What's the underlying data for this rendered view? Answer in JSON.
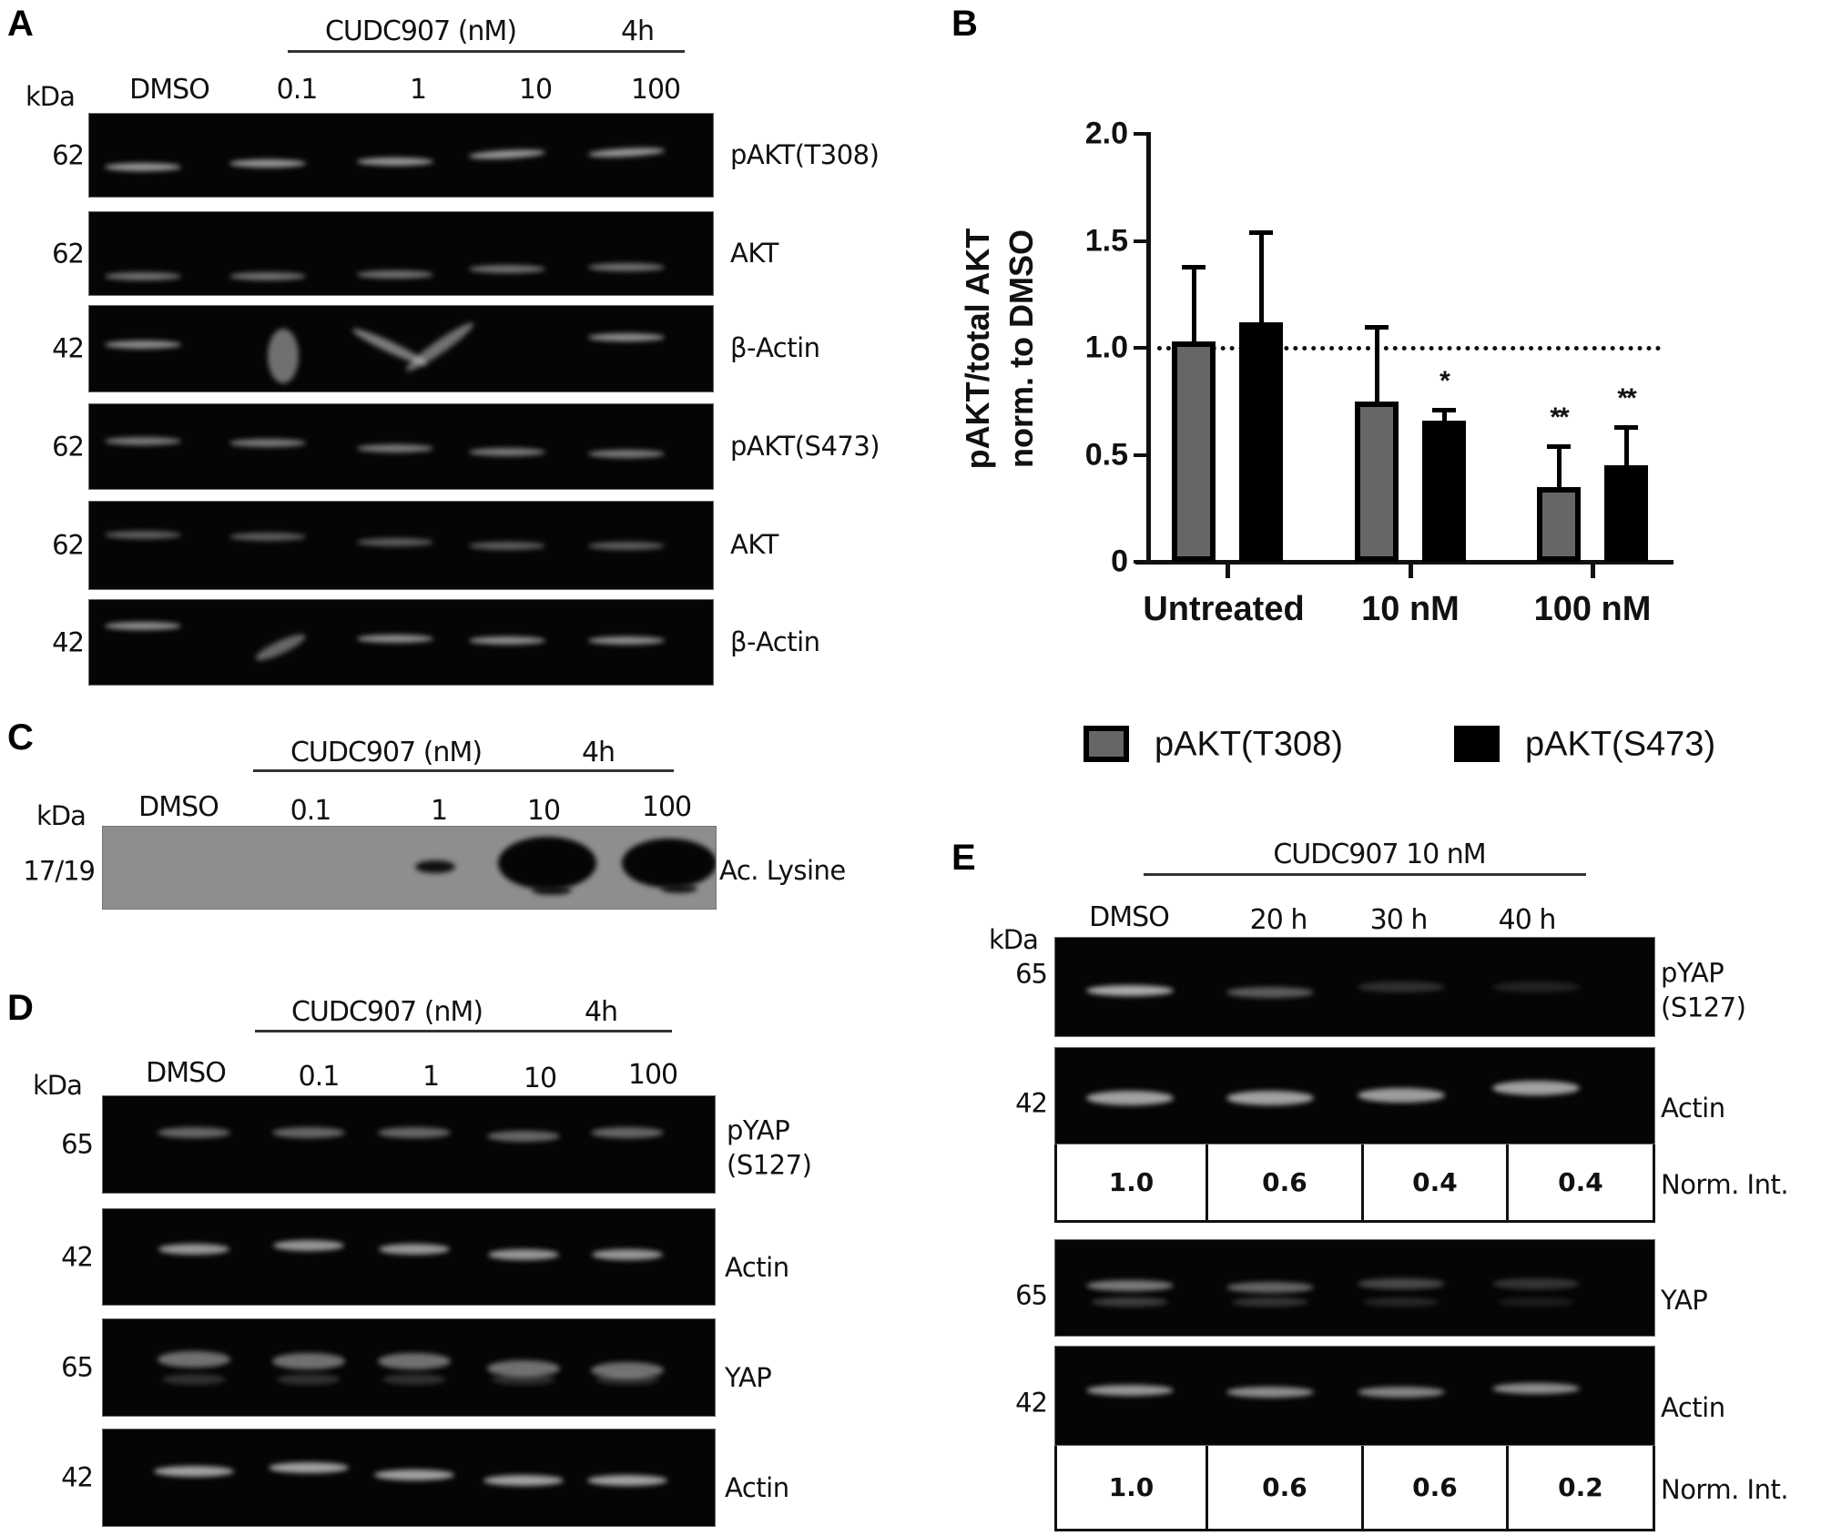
{
  "panels": {
    "A": {
      "letter": "A",
      "treatment_header": "CUDC907 (nM)",
      "time_header": "4h",
      "kda_label": "kDa",
      "lanes": [
        "DMSO",
        "0.1",
        "1",
        "10",
        "100"
      ],
      "blots": [
        {
          "mw": "62",
          "label": "pAKT(T308)"
        },
        {
          "mw": "62",
          "label": "AKT"
        },
        {
          "mw": "42",
          "label": "β-Actin"
        },
        {
          "mw": "62",
          "label": "pAKT(S473)"
        },
        {
          "mw": "62",
          "label": "AKT"
        },
        {
          "mw": "42",
          "label": "β-Actin"
        }
      ]
    },
    "B": {
      "letter": "B"
    },
    "C": {
      "letter": "C",
      "treatment_header": "CUDC907 (nM)",
      "time_header": "4h",
      "kda_label": "kDa",
      "lanes": [
        "DMSO",
        "0.1",
        "1",
        "10",
        "100"
      ],
      "blots": [
        {
          "mw": "17/19",
          "label": "Ac. Lysine"
        }
      ]
    },
    "D": {
      "letter": "D",
      "treatment_header": "CUDC907 (nM)",
      "time_header": "4h",
      "kda_label": "kDa",
      "lanes": [
        "DMSO",
        "0.1",
        "1",
        "10",
        "100"
      ],
      "blots": [
        {
          "mw": "65",
          "label_line1": "pYAP",
          "label_line2": "(S127)"
        },
        {
          "mw": "42",
          "label": "Actin"
        },
        {
          "mw": "65",
          "label": "YAP"
        },
        {
          "mw": "42",
          "label": "Actin"
        }
      ]
    },
    "E": {
      "letter": "E",
      "treatment_header": "CUDC907 10 nM",
      "kda_label": "kDa",
      "lanes": [
        "DMSO",
        "20 h",
        "30 h",
        "40 h"
      ],
      "blots": [
        {
          "mw": "65",
          "label_line1": "pYAP",
          "label_line2": "(S127)"
        },
        {
          "mw": "42",
          "label": "Actin"
        },
        {
          "mw": "65",
          "label": "YAP"
        },
        {
          "mw": "42",
          "label": "Actin"
        }
      ],
      "quant_tables": [
        {
          "label": "Norm. Int.",
          "values": [
            "1.0",
            "0.6",
            "0.4",
            "0.4"
          ]
        },
        {
          "label": "Norm. Int.",
          "values": [
            "1.0",
            "0.6",
            "0.6",
            "0.2"
          ]
        }
      ]
    }
  },
  "chart_data": {
    "type": "bar",
    "title": "",
    "xlabel": "",
    "ylabel": "pAKT/total AKT norm. to DMSO",
    "ylabel_line1": "pAKT/total AKT",
    "ylabel_line2": "norm. to DMSO",
    "ylim": [
      0,
      2.0
    ],
    "yticks": [
      "0",
      "0.5",
      "1.0",
      "1.5",
      "2.0"
    ],
    "grid": false,
    "reference_line": {
      "y": 1.0,
      "style": "dotted"
    },
    "categories": [
      "Untreated",
      "10 nM",
      "100 nM"
    ],
    "series": [
      {
        "name": "pAKT(T308)",
        "color": "#666666",
        "values": [
          1.03,
          0.75,
          0.35
        ],
        "error_upper": [
          1.38,
          1.1,
          0.54
        ],
        "significance": [
          "",
          "",
          "**"
        ]
      },
      {
        "name": "pAKT(S473)",
        "color": "#000000",
        "values": [
          1.12,
          0.66,
          0.45
        ],
        "error_upper": [
          1.54,
          0.71,
          0.63
        ],
        "significance": [
          "",
          "*",
          "**"
        ]
      }
    ],
    "legend_position": "bottom"
  }
}
